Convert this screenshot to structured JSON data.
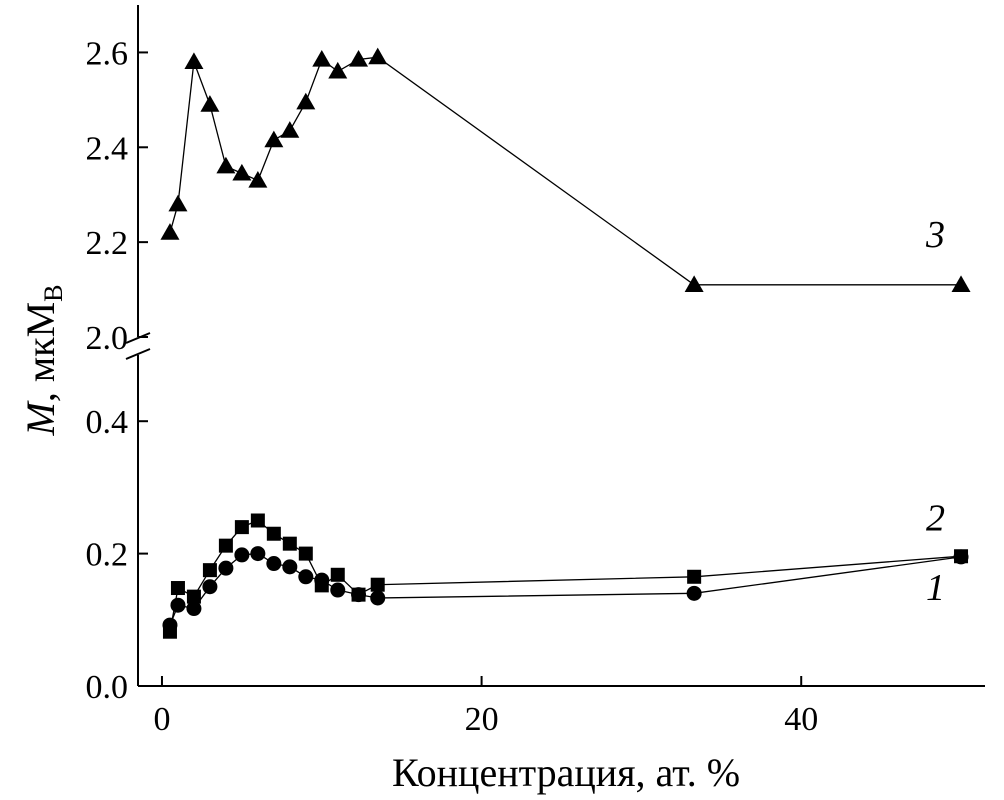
{
  "chart_data": {
    "type": "scatter",
    "xlabel": "Концентрация, ат. %",
    "ylabel": "M, мкМ",
    "ylabel_italic": "M",
    "ylabel_rest": ", мкМ",
    "ylabel_subscript": "B",
    "xlim": [
      -1.5,
      51.5
    ],
    "x_ticks": [
      0,
      20,
      40
    ],
    "x_tick_labels": [
      "0",
      "20",
      "40"
    ],
    "y_axis_break": true,
    "lower_ylim": [
      0.0,
      0.5
    ],
    "lower_y_ticks": [
      0.0,
      0.2,
      0.4
    ],
    "lower_y_tick_labels": [
      "0.0",
      "0.2",
      "0.4"
    ],
    "upper_ylim": [
      2.0,
      2.7
    ],
    "upper_y_ticks": [
      2.0,
      2.2,
      2.4,
      2.6
    ],
    "upper_y_tick_labels": [
      "2.0",
      "2.2",
      "2.4",
      "2.6"
    ],
    "grid": false,
    "series": [
      {
        "label": "1",
        "marker": "circle",
        "panel": "lower",
        "x": [
          0.5,
          1,
          2,
          3,
          4,
          5,
          6,
          7,
          8,
          9,
          10,
          11,
          12.3,
          13.5,
          33.3,
          50
        ],
        "y": [
          0.092,
          0.122,
          0.117,
          0.15,
          0.178,
          0.198,
          0.2,
          0.185,
          0.18,
          0.165,
          0.16,
          0.145,
          0.138,
          0.133,
          0.14,
          0.195
        ]
      },
      {
        "label": "2",
        "marker": "square",
        "panel": "lower",
        "x": [
          0.5,
          1,
          2,
          3,
          4,
          5,
          6,
          7,
          8,
          9,
          10,
          11,
          12.3,
          13.5,
          33.3,
          50
        ],
        "y": [
          0.082,
          0.148,
          0.135,
          0.175,
          0.212,
          0.24,
          0.25,
          0.23,
          0.215,
          0.2,
          0.152,
          0.168,
          0.138,
          0.153,
          0.165,
          0.196
        ]
      },
      {
        "label": "3",
        "marker": "triangle",
        "panel": "upper",
        "x": [
          0.5,
          1,
          2,
          3,
          4,
          5,
          6,
          7,
          8,
          9,
          10,
          11,
          12.3,
          13.5,
          33.3,
          50
        ],
        "y": [
          2.22,
          2.28,
          2.58,
          2.49,
          2.36,
          2.345,
          2.33,
          2.415,
          2.435,
          2.495,
          2.585,
          2.56,
          2.585,
          2.59,
          2.11,
          2.11
        ]
      }
    ]
  }
}
